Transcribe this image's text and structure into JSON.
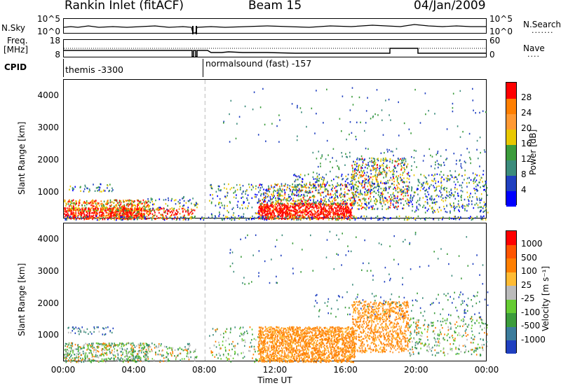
{
  "header": {
    "title": "Rankin Inlet (fitACF)",
    "beam": "Beam 15",
    "date": "04/Jan/2009"
  },
  "top_panels": {
    "nsky_label": "N.Sky",
    "nsky_tick_top": "10^5",
    "nsky_tick_bottom": "10^0",
    "nsearch_label": "N.Search",
    "nsearch_tick_top": "10^5",
    "nsearch_tick_bottom": "10^0",
    "freq_label_1": "Freq.",
    "freq_label_2": "[MHz]",
    "freq_tick_top": "18",
    "freq_tick_bottom": "8",
    "nave_label": "Nave",
    "nave_tick_top": "60",
    "nave_tick_bottom": "0",
    "cpid_label": "CPID",
    "cpid_1": "themis -3300",
    "cpid_2": "normalsound (fast) -157"
  },
  "colors": {
    "red": "#ff0000",
    "orange": "#ff7f00",
    "yellow": "#e8c800",
    "green_light": "#66cc33",
    "green": "#3c9c3c",
    "teal": "#3c8c7c",
    "blue": "#2040c0",
    "blue_bright": "#0000ff",
    "gray": "#bbbbbb"
  },
  "chart_data": [
    {
      "type": "heatmap",
      "title": "",
      "ylabel": "Slant Range [km]",
      "xlabel": "Time UT",
      "x_ticks": [
        "00:00",
        "04:00",
        "08:00",
        "12:00",
        "16:00",
        "20:00",
        "00:00"
      ],
      "y_ticks": [
        "1000",
        "2000",
        "3000",
        "4000"
      ],
      "ylim": [
        180,
        4500
      ],
      "xlim_hours": [
        0,
        24
      ],
      "colorbar_label": "Power [dB]",
      "colorbar_ticks": [
        "4",
        "8",
        "12",
        "16",
        "20",
        "24",
        "28"
      ],
      "colorbar_colors": [
        "#0000ff",
        "#2040c0",
        "#3c8c7c",
        "#3c9c3c",
        "#e8c800",
        "#ff9933",
        "#ff7f00",
        "#ff0000"
      ]
    },
    {
      "type": "heatmap",
      "title": "",
      "ylabel": "Slant Range [km]",
      "xlabel": "Time UT",
      "x_ticks": [
        "00:00",
        "04:00",
        "08:00",
        "12:00",
        "16:00",
        "20:00",
        "00:00"
      ],
      "y_ticks": [
        "1000",
        "2000",
        "3000",
        "4000"
      ],
      "ylim": [
        180,
        4500
      ],
      "xlim_hours": [
        0,
        24
      ],
      "colorbar_label": "Velocity [m s⁻¹]",
      "colorbar_ticks": [
        "1000",
        "500",
        "100",
        "25",
        "-25",
        "-100",
        "-500",
        "-1000"
      ],
      "colorbar_colors": [
        "#2040c0",
        "#3c7c9c",
        "#3c9c3c",
        "#66cc33",
        "#bbbbbb",
        "#ffbb33",
        "#ff7f00",
        "#ff5500",
        "#ff0000"
      ]
    }
  ]
}
